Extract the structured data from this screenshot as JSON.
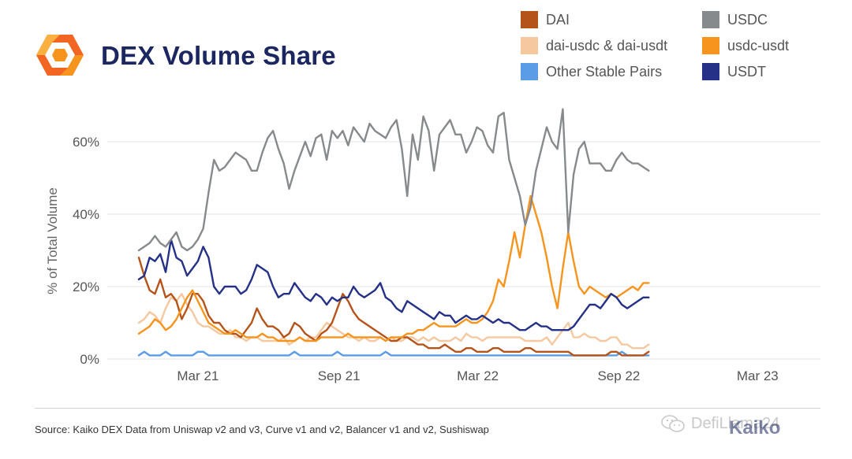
{
  "page": {
    "title": "DEX Volume Share",
    "source": "Source: Kaiko DEX Data from Uniswap v2 and v3, Curve v1 and v2, Balancer v1 and v2, Sushiswap",
    "watermark": "DefiLlama24",
    "brand": "Kaiko",
    "logo_icon": "kaiko-hexagon-logo-icon",
    "logo_colors": [
      "#f7941d",
      "#f26522",
      "#fbb040"
    ]
  },
  "chart_data": {
    "type": "line",
    "title": "DEX Volume Share",
    "xlabel": "",
    "ylabel": "% of Total Volume",
    "ylim": [
      0,
      70
    ],
    "yticks": [
      0,
      20,
      40,
      60
    ],
    "ytick_labels": [
      "0%",
      "20%",
      "40%",
      "60%"
    ],
    "xlim": [
      "2020-12-14",
      "2023-05-22"
    ],
    "xticks": [
      "2021-03-01",
      "2021-09-01",
      "2022-03-01",
      "2022-09-01",
      "2023-03-01"
    ],
    "xtick_labels": [
      "Mar 21",
      "Sep 21",
      "Mar 22",
      "Sep 22",
      "Mar 23"
    ],
    "grid": "horizontal",
    "legend_position": "top-right",
    "x_start": "2020-12-14",
    "x_step_days": 7,
    "series": [
      {
        "name": "DAI",
        "color": "#b5541a",
        "values": [
          28,
          23,
          19,
          18,
          22,
          17,
          18,
          16,
          11,
          14,
          18,
          18,
          16,
          12,
          10,
          10,
          8,
          7,
          7,
          6,
          8,
          10,
          14,
          11,
          9,
          9,
          8,
          6,
          7,
          10,
          9,
          7,
          6,
          5,
          7,
          8,
          10,
          14,
          18,
          16,
          13,
          11,
          10,
          9,
          8,
          7,
          6,
          5,
          5,
          6,
          6,
          5,
          4,
          4,
          3,
          3,
          3,
          4,
          3,
          2,
          2,
          3,
          3,
          2,
          2,
          2,
          3,
          3,
          2,
          2,
          2,
          2,
          3,
          3,
          2,
          2,
          2,
          2,
          2,
          2,
          2,
          1,
          1,
          1,
          1,
          1,
          1,
          1,
          2,
          2,
          1,
          1,
          1,
          1,
          1,
          2
        ]
      },
      {
        "name": "dai-usdc & dai-usdt",
        "color": "#f5c8a0",
        "values": [
          10,
          11,
          13,
          12,
          10,
          14,
          17,
          16,
          18,
          15,
          13,
          10,
          9,
          9,
          8,
          7,
          7,
          8,
          6,
          6,
          5,
          6,
          6,
          5,
          5,
          5,
          5,
          6,
          4,
          5,
          6,
          5,
          6,
          6,
          8,
          10,
          9,
          8,
          7,
          6,
          6,
          5,
          6,
          5,
          5,
          6,
          5,
          6,
          5,
          5,
          6,
          6,
          5,
          6,
          5,
          6,
          5,
          5,
          5,
          6,
          5,
          7,
          6,
          6,
          5,
          6,
          6,
          6,
          6,
          6,
          6,
          6,
          5,
          5,
          5,
          5,
          6,
          4,
          6,
          8,
          10,
          6,
          6,
          7,
          6,
          6,
          5,
          5,
          6,
          6,
          4,
          4,
          3,
          3,
          3,
          4
        ]
      },
      {
        "name": "Other Stable Pairs",
        "color": "#5b9ce6",
        "values": [
          1,
          2,
          1,
          1,
          1,
          2,
          1,
          1,
          1,
          1,
          1,
          2,
          2,
          1,
          1,
          1,
          1,
          1,
          1,
          1,
          1,
          1,
          1,
          1,
          1,
          1,
          1,
          1,
          1,
          2,
          1,
          1,
          1,
          1,
          1,
          1,
          1,
          2,
          1,
          1,
          1,
          1,
          1,
          1,
          1,
          1,
          2,
          1,
          1,
          1,
          1,
          1,
          1,
          1,
          1,
          1,
          1,
          1,
          1,
          1,
          1,
          1,
          1,
          1,
          1,
          1,
          1,
          1,
          1,
          1,
          1,
          1,
          1,
          1,
          1,
          1,
          1,
          1,
          1,
          1,
          1,
          1,
          1,
          1,
          1,
          1,
          1,
          1,
          1,
          1,
          2,
          1,
          1,
          1,
          1,
          1
        ]
      },
      {
        "name": "USDC",
        "color": "#878a8c",
        "values": [
          30,
          31,
          32,
          34,
          32,
          31,
          33,
          35,
          31,
          30,
          31,
          33,
          36,
          46,
          55,
          52,
          53,
          55,
          57,
          56,
          55,
          52,
          52,
          57,
          61,
          63,
          58,
          54,
          47,
          52,
          56,
          60,
          56,
          61,
          62,
          55,
          63,
          61,
          63,
          59,
          64,
          62,
          60,
          65,
          63,
          62,
          61,
          64,
          66,
          58,
          45,
          62,
          55,
          67,
          63,
          52,
          62,
          64,
          66,
          62,
          62,
          57,
          60,
          64,
          63,
          59,
          57,
          67,
          68,
          55,
          50,
          45,
          37,
          42,
          52,
          58,
          64,
          60,
          58,
          69,
          35,
          51,
          58,
          60,
          54,
          54,
          54,
          52,
          52,
          55,
          57,
          55,
          54,
          54,
          53,
          52
        ]
      },
      {
        "name": "usdc-usdt",
        "color": "#f7941d",
        "values": [
          7,
          8,
          9,
          11,
          10,
          8,
          9,
          11,
          14,
          17,
          19,
          16,
          13,
          10,
          9,
          8,
          7,
          7,
          8,
          7,
          6,
          6,
          6,
          7,
          6,
          6,
          5,
          5,
          5,
          5,
          6,
          5,
          5,
          5,
          6,
          6,
          6,
          6,
          6,
          7,
          6,
          6,
          6,
          6,
          6,
          6,
          5,
          6,
          6,
          6,
          7,
          7,
          8,
          8,
          9,
          10,
          9,
          9,
          9,
          9,
          10,
          11,
          10,
          10,
          11,
          13,
          16,
          22,
          20,
          27,
          35,
          28,
          37,
          45,
          40,
          35,
          28,
          20,
          14,
          25,
          35,
          27,
          20,
          18,
          20,
          19,
          18,
          17,
          18,
          17,
          18,
          19,
          20,
          19,
          21,
          21
        ]
      },
      {
        "name": "USDT",
        "color": "#253187",
        "values": [
          22,
          23,
          28,
          27,
          29,
          24,
          33,
          28,
          27,
          23,
          25,
          27,
          31,
          28,
          20,
          18,
          20,
          20,
          20,
          18,
          19,
          22,
          26,
          25,
          24,
          20,
          17,
          18,
          18,
          21,
          19,
          17,
          16,
          18,
          17,
          15,
          17,
          16,
          17,
          17,
          20,
          18,
          17,
          18,
          19,
          21,
          17,
          16,
          14,
          13,
          16,
          15,
          14,
          13,
          12,
          11,
          13,
          12,
          12,
          10,
          11,
          12,
          11,
          11,
          12,
          11,
          10,
          11,
          10,
          10,
          9,
          8,
          8,
          9,
          10,
          9,
          9,
          8,
          8,
          8,
          8,
          9,
          11,
          13,
          15,
          15,
          14,
          16,
          18,
          17,
          15,
          14,
          15,
          16,
          17,
          17
        ]
      }
    ]
  },
  "legend": [
    {
      "label": "DAI",
      "color": "#b5541a"
    },
    {
      "label": "USDC",
      "color": "#878a8c"
    },
    {
      "label": "dai-usdc & dai-usdt",
      "color": "#f5c8a0"
    },
    {
      "label": "usdc-usdt",
      "color": "#f7941d"
    },
    {
      "label": "Other Stable Pairs",
      "color": "#5b9ce6"
    },
    {
      "label": "USDT",
      "color": "#253187"
    }
  ]
}
